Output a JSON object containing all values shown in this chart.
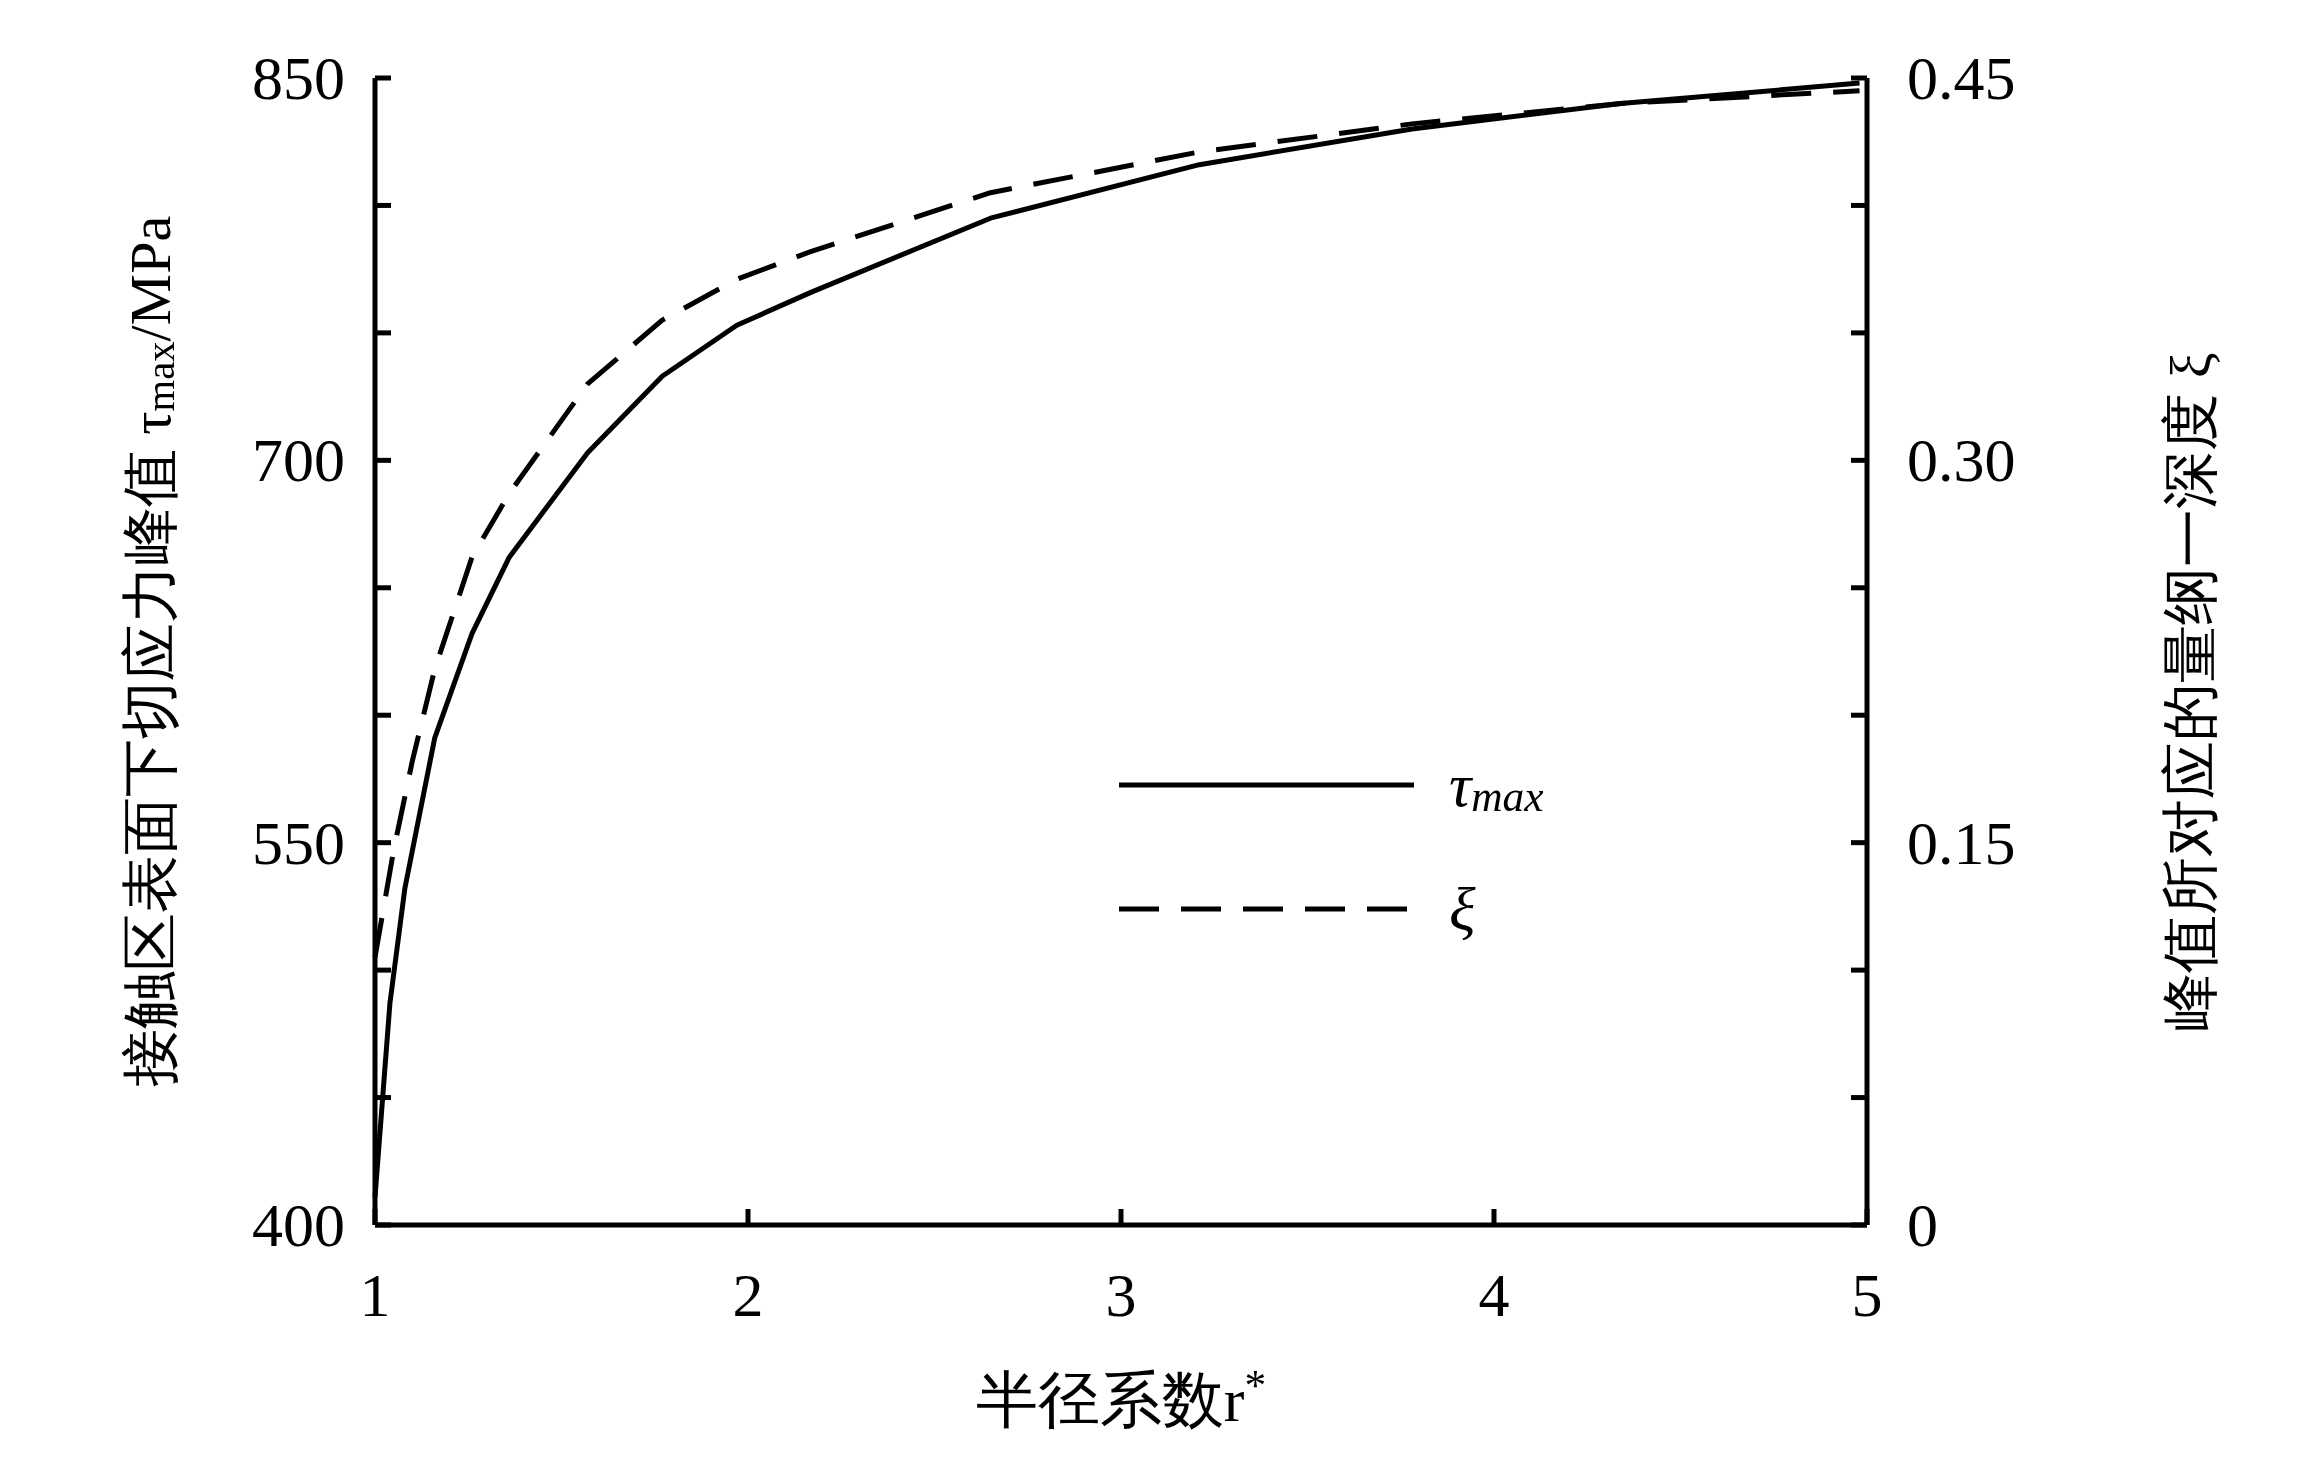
{
  "chart_data": {
    "type": "line",
    "xlabel": "半径系数r$^{*}$",
    "ylabel": "接触区表面下切应力峰值 τ$_{max}$/MPa",
    "y2label": "峰值所对应的量纲一深度 ξ",
    "xlim": [
      1,
      5
    ],
    "xticks": [
      1,
      2,
      3,
      4,
      5
    ],
    "ylim": [
      400,
      850
    ],
    "yticks": [
      400,
      {
        "value": 450,
        "label": null
      },
      {
        "value": 500,
        "label": null
      },
      550,
      {
        "value": 600,
        "label": null
      },
      {
        "value": 650,
        "label": null
      },
      700,
      {
        "value": 750,
        "label": null
      },
      {
        "value": 800,
        "label": null
      },
      850
    ],
    "y2lim": [
      0,
      0.45
    ],
    "y2ticks": [
      0,
      {
        "value": 0.05,
        "label": null
      },
      {
        "value": 0.1,
        "label": null
      },
      0.15,
      {
        "value": 0.2,
        "label": null
      },
      {
        "value": 0.25,
        "label": null
      },
      {
        "value": 0.3,
        "label": "0.30"
      },
      {
        "value": 0.35,
        "label": null
      },
      {
        "value": 0.4,
        "label": null
      },
      0.45
    ],
    "legend": "right",
    "grid": false,
    "series": [
      {
        "name": "τ$_{max}$",
        "color": "#000000",
        "line_style": "solid",
        "x": [
          1.0,
          1.04,
          1.08,
          1.16,
          1.26,
          1.36,
          1.57,
          1.77,
          1.97,
          2.17,
          2.65,
          3.21,
          3.78,
          4.34,
          4.98
        ],
        "values": [
          411,
          487,
          532,
          591,
          632,
          662,
          703,
          733,
          753,
          766,
          795,
          816,
          830,
          840,
          848
        ]
      },
      {
        "name": "ξ",
        "color": "#000000",
        "line_style": "dashed",
        "axis": "y2",
        "x": [
          1.0,
          1.05,
          1.1,
          1.16,
          1.26,
          1.36,
          1.57,
          1.77,
          1.97,
          2.17,
          2.65,
          3.21,
          3.78,
          4.34,
          4.98
        ],
        "values": [
          0.105,
          0.147,
          0.182,
          0.218,
          0.262,
          0.287,
          0.33,
          0.355,
          0.371,
          0.382,
          0.405,
          0.421,
          0.432,
          0.44,
          0.445
        ]
      }
    ]
  }
}
